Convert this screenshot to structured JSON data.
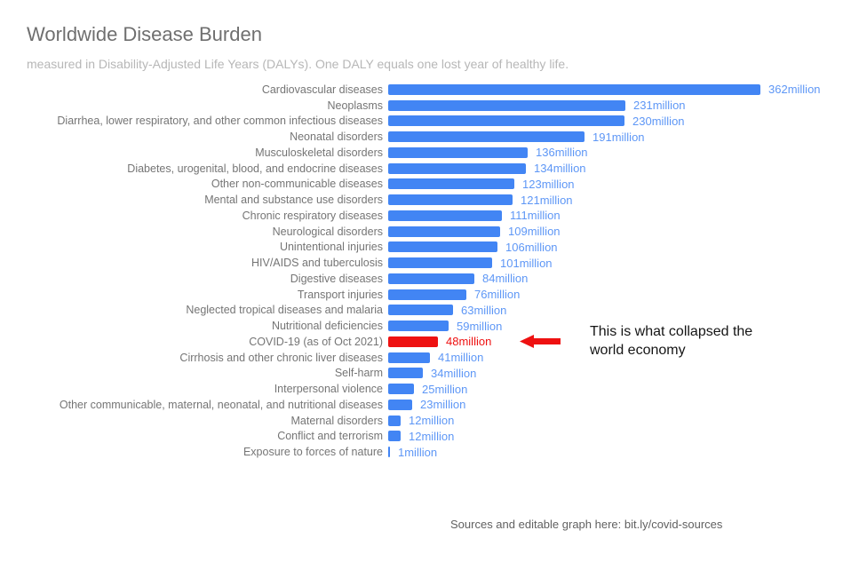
{
  "title": "Worldwide Disease Burden",
  "subtitle": "measured in Disability-Adjusted Life Years (DALYs). One DALY equals one lost year of healthy life.",
  "annotation": {
    "line1": "This is what collapsed the",
    "line2": "world economy"
  },
  "footer": "Sources and editable graph here: bit.ly/covid-sources",
  "colors": {
    "bar": "#4285f4",
    "value_label": "#5e97f6",
    "highlight": "#ee1111",
    "category_label": "#757575",
    "title": "#6f6f6f",
    "subtitle": "#b7b7b7",
    "annotation_text": "#151515",
    "footer_text": "#616161"
  },
  "chart_data": {
    "type": "bar",
    "orientation": "horizontal",
    "title": "Worldwide Disease Burden",
    "unit": "million DALYs",
    "value_suffix": "million",
    "xlim": [
      0,
      362
    ],
    "grid": false,
    "legend": "none",
    "highlight_index": 16,
    "highlight_note": "COVID-19 bar and its value label are red; red arrow with annotation points to it",
    "categories": [
      "Cardiovascular diseases",
      "Neoplasms",
      "Diarrhea, lower respiratory, and other common infectious diseases",
      "Neonatal disorders",
      "Musculoskeletal disorders",
      "Diabetes, urogenital, blood, and endocrine diseases",
      "Other non-communicable diseases",
      "Mental and substance use disorders",
      "Chronic respiratory diseases",
      "Neurological disorders",
      "Unintentional injuries",
      "HIV/AIDS and tuberculosis",
      "Digestive diseases",
      "Transport injuries",
      "Neglected tropical diseases and malaria",
      "Nutritional deficiencies",
      "COVID-19 (as of Oct 2021)",
      "Cirrhosis and other chronic liver diseases",
      "Self-harm",
      "Interpersonal violence",
      "Other communicable, maternal, neonatal, and nutritional diseases",
      "Maternal disorders",
      "Conflict and terrorism",
      "Exposure to forces of nature"
    ],
    "values": [
      362,
      231,
      230,
      191,
      136,
      134,
      123,
      121,
      111,
      109,
      106,
      101,
      84,
      76,
      63,
      59,
      48,
      41,
      34,
      25,
      23,
      12,
      12,
      1
    ],
    "value_labels": [
      "362million",
      "231million",
      "230million",
      "191million",
      "136million",
      "134million",
      "123million",
      "121million",
      "111million",
      "109million",
      "106million",
      "101million",
      "84million",
      "76million",
      "63million",
      "59million",
      "48million",
      "41million",
      "34million",
      "25million",
      "23million",
      "12million",
      "12million",
      "1million"
    ]
  }
}
